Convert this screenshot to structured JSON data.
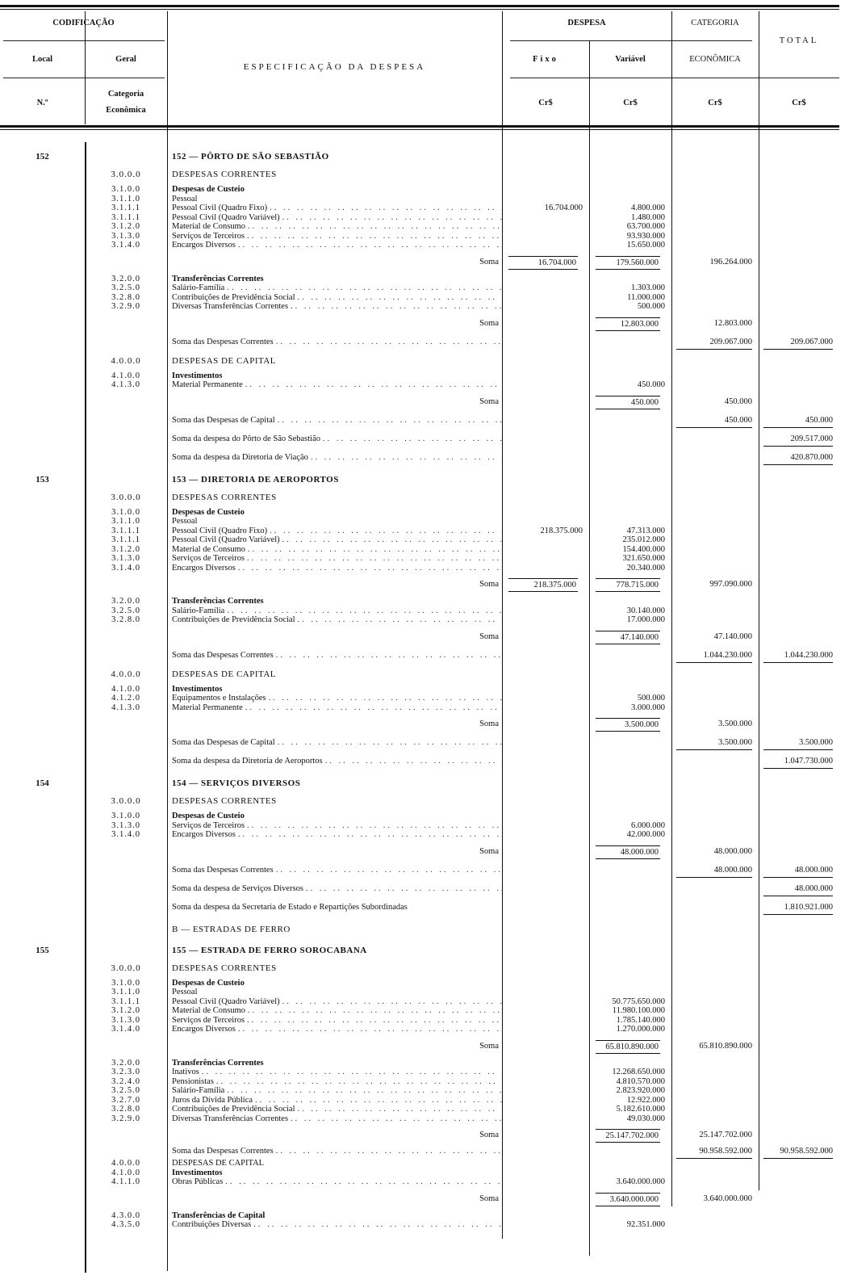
{
  "header": {
    "codificacao": "CODIFICAÇÃO",
    "local": "Local",
    "geral": "Geral",
    "numero": "N.º",
    "categoria_economica_code": "Categoria Econômica",
    "especificacao": "ESPECIFICAÇÃO DA DESPESA",
    "despesa": "DESPESA",
    "fixo": "Fixo",
    "variavel": "Variável",
    "categoria": "CATEGORIA",
    "economica": "ECONÔMICA",
    "total": "TOTAL",
    "currency": "Cr$"
  },
  "rows": [
    {
      "kind": "heading",
      "local": "152",
      "desc": "152 — PÔRTO DE SÃO SEBASTIÃO"
    },
    {
      "kind": "section",
      "code": "3.0.0.0",
      "desc": "DESPESAS CORRENTES"
    },
    {
      "kind": "group",
      "code": "3.1.0.0",
      "desc": "Despesas de Custeio",
      "bold": true
    },
    {
      "kind": "item",
      "code": "3.1.1.0",
      "desc": "Pessoal"
    },
    {
      "kind": "item",
      "code": "3.1.1.1",
      "desc": "Pessoal Civil (Quadro Fixo)",
      "leader": true,
      "fixo": "16.704.000",
      "var": "4.800.000"
    },
    {
      "kind": "item",
      "code": "3.1.1.1",
      "desc": "Pessoal Civil (Quadro Variável)",
      "leader": true,
      "var": "1.480.000"
    },
    {
      "kind": "item",
      "code": "3.1.2.0",
      "desc": "Material de Consumo",
      "leader": true,
      "var": "63.700.000"
    },
    {
      "kind": "item",
      "code": "3.1.3.0",
      "desc": "Serviços de Terceiros",
      "leader": true,
      "var": "93.930.000"
    },
    {
      "kind": "item",
      "code": "3.1.4.0",
      "desc": "Encargos Diversos",
      "leader": true,
      "var": "15.650.000"
    },
    {
      "kind": "soma",
      "desc": "Soma",
      "fixo": "16.704.000",
      "var": "179.560.000",
      "cat": "196.264.000"
    },
    {
      "kind": "group",
      "code": "3.2.0.0",
      "desc": "Transferências Correntes",
      "bold": true
    },
    {
      "kind": "item",
      "code": "3.2.5.0",
      "desc": "Salário-Família",
      "leader": true,
      "var": "1.303.000"
    },
    {
      "kind": "item",
      "code": "3.2.8.0",
      "desc": "Contribuições de Previdência Social",
      "leader": true,
      "var": "11.000.000"
    },
    {
      "kind": "item",
      "code": "3.2.9.0",
      "desc": "Diversas Transferências Correntes",
      "leader": true,
      "var": "500.000"
    },
    {
      "kind": "soma",
      "desc": "Soma",
      "var": "12.803.000",
      "cat": "12.803.000"
    },
    {
      "kind": "summary",
      "desc": "Soma das Despesas Correntes",
      "leader": true,
      "cat": "209.067.000",
      "total": "209.067.000"
    },
    {
      "kind": "section",
      "code": "4.0.0.0",
      "desc": "DESPESAS DE CAPITAL"
    },
    {
      "kind": "group",
      "code": "4.1.0.0",
      "desc": "Investimentos",
      "bold": true
    },
    {
      "kind": "item",
      "code": "4.1.3.0",
      "desc": "Material Permanente",
      "leader": true,
      "var": "450.000"
    },
    {
      "kind": "soma",
      "desc": "Soma",
      "var": "450.000",
      "cat": "450.000"
    },
    {
      "kind": "summary",
      "desc": "Soma das Despesas de Capital",
      "leader": true,
      "cat": "450.000",
      "total": "450.000"
    },
    {
      "kind": "summary",
      "desc": "Soma da despesa do Pôrto de São Sebastião",
      "leader": true,
      "total": "209.517.000"
    },
    {
      "kind": "summary",
      "desc": "Soma da despesa da Diretoria de Viação",
      "leader": true,
      "total": "420.870.000"
    },
    {
      "kind": "heading",
      "local": "153",
      "desc": "153 — DIRETORIA DE AEROPORTOS"
    },
    {
      "kind": "section",
      "code": "3.0.0.0",
      "desc": "DESPESAS CORRENTES"
    },
    {
      "kind": "group",
      "code": "3.1.0.0",
      "desc": "Despesas de Custeio",
      "bold": true
    },
    {
      "kind": "item",
      "code": "3.1.1.0",
      "desc": "Pessoal"
    },
    {
      "kind": "item",
      "code": "3.1.1.1",
      "desc": "Pessoal Civil (Quadro Fixo)",
      "leader": true,
      "fixo": "218.375.000",
      "var": "47.313.000"
    },
    {
      "kind": "item",
      "code": "3.1.1.1",
      "desc": "Pessoal Civil (Quadro Variável)",
      "leader": true,
      "var": "235.012.000"
    },
    {
      "kind": "item",
      "code": "3.1.2.0",
      "desc": "Material de Consumo",
      "leader": true,
      "var": "154.400.000"
    },
    {
      "kind": "item",
      "code": "3.1.3.0",
      "desc": "Serviços de Terceiros",
      "leader": true,
      "var": "321.650.000"
    },
    {
      "kind": "item",
      "code": "3.1.4.0",
      "desc": "Encargos Diversos",
      "leader": true,
      "var": "20.340.000"
    },
    {
      "kind": "soma",
      "desc": "Soma",
      "fixo": "218.375.000",
      "var": "778.715.000",
      "cat": "997.090.000"
    },
    {
      "kind": "group",
      "code": "3.2.0.0",
      "desc": "Transferências Correntes",
      "bold": true
    },
    {
      "kind": "item",
      "code": "3.2.5.0",
      "desc": "Salário-Família",
      "leader": true,
      "var": "30.140.000"
    },
    {
      "kind": "item",
      "code": "3.2.8.0",
      "desc": "Contribuições de Previdência Social",
      "leader": true,
      "var": "17.000.000"
    },
    {
      "kind": "soma",
      "desc": "Soma",
      "var": "47.140.000",
      "cat": "47.140.000"
    },
    {
      "kind": "summary",
      "desc": "Soma das Despesas Correntes",
      "leader": true,
      "cat": "1.044.230.000",
      "total": "1.044.230.000"
    },
    {
      "kind": "section",
      "code": "4.0.0.0",
      "desc": "DESPESAS DE CAPITAL"
    },
    {
      "kind": "group",
      "code": "4.1.0.0",
      "desc": "Investimentos",
      "bold": true
    },
    {
      "kind": "item",
      "code": "4.1.2.0",
      "desc": "Equipamentos e Instalações",
      "leader": true,
      "var": "500.000"
    },
    {
      "kind": "item",
      "code": "4.1.3.0",
      "desc": "Material Permanente",
      "leader": true,
      "var": "3.000.000"
    },
    {
      "kind": "soma",
      "desc": "Soma",
      "var": "3.500.000",
      "cat": "3.500.000"
    },
    {
      "kind": "summary",
      "desc": "Soma das Despesas de Capital",
      "leader": true,
      "cat": "3.500.000",
      "total": "3.500.000"
    },
    {
      "kind": "summary",
      "desc": "Soma da despesa da Diretoria de Aeroportos",
      "leader": true,
      "total": "1.047.730.000"
    },
    {
      "kind": "heading",
      "local": "154",
      "desc": "154 — SERVIÇOS DIVERSOS"
    },
    {
      "kind": "section",
      "code": "3.0.0.0",
      "desc": "DESPESAS CORRENTES"
    },
    {
      "kind": "group",
      "code": "3.1.0.0",
      "desc": "Despesas de Custeio",
      "bold": true
    },
    {
      "kind": "item",
      "code": "3.1.3.0",
      "desc": "Serviços de Terceiros",
      "leader": true,
      "var": "6.000.000"
    },
    {
      "kind": "item",
      "code": "3.1.4.0",
      "desc": "Encargos Diversos",
      "leader": true,
      "var": "42.000.000"
    },
    {
      "kind": "soma",
      "desc": "Soma",
      "var": "48.000.000",
      "cat": "48.000.000"
    },
    {
      "kind": "summary",
      "desc": "Soma das Despesas Correntes",
      "leader": true,
      "cat": "48.000.000",
      "total": "48.000.000"
    },
    {
      "kind": "summary",
      "desc": "Soma da despesa de Serviços Diversos",
      "leader": true,
      "total": "48.000.000"
    },
    {
      "kind": "summary",
      "desc": "Soma da despesa da Secretaria de Estado e Repartições Subordinadas",
      "total": "1.810.921.000"
    },
    {
      "kind": "heading",
      "plain": true,
      "desc": "B — ESTRADAS DE FERRO"
    },
    {
      "kind": "heading",
      "local": "155",
      "desc": "155 — ESTRADA DE FERRO SOROCABANA"
    },
    {
      "kind": "section",
      "code": "3.0.0.0",
      "desc": "DESPESAS CORRENTES"
    },
    {
      "kind": "group",
      "code": "3.1.0.0",
      "desc": "Despesas de Custeio",
      "bold": true
    },
    {
      "kind": "item",
      "code": "3.1.1.0",
      "desc": "Pessoal"
    },
    {
      "kind": "item",
      "code": "3.1.1.1",
      "desc": "Pessoal Civil (Quadro Variável)",
      "leader": true,
      "var": "50.775.650.000"
    },
    {
      "kind": "item",
      "code": "3.1.2.0",
      "desc": "Material de Consumo",
      "leader": true,
      "var": "11.980.100.000"
    },
    {
      "kind": "item",
      "code": "3.1.3.0",
      "desc": "Serviços de Terceiros",
      "leader": true,
      "var": "1.785.140.000"
    },
    {
      "kind": "item",
      "code": "3.1.4.0",
      "desc": "Encargos Diversos",
      "leader": true,
      "var": "1.270.000.000"
    },
    {
      "kind": "soma",
      "desc": "Soma",
      "var": "65.810.890.000",
      "cat": "65.810.890.000"
    },
    {
      "kind": "group",
      "code": "3.2.0.0",
      "desc": "Transferências Correntes",
      "bold": true
    },
    {
      "kind": "item",
      "code": "3.2.3.0",
      "desc": "Inativos",
      "leader": true,
      "var": "12.268.650.000"
    },
    {
      "kind": "item",
      "code": "3.2.4.0",
      "desc": "Pensionistas",
      "leader": true,
      "var": "4.810.570.000"
    },
    {
      "kind": "item",
      "code": "3.2.5.0",
      "desc": "Salário-Família",
      "leader": true,
      "var": "2.823.920.000"
    },
    {
      "kind": "item",
      "code": "3.2.7.0",
      "desc": "Juros da Dívida Pública",
      "leader": true,
      "var": "12.922.000"
    },
    {
      "kind": "item",
      "code": "3.2.8.0",
      "desc": "Contribuições de Previdência Social",
      "leader": true,
      "var": "5.182.610.000"
    },
    {
      "kind": "item",
      "code": "3.2.9.0",
      "desc": "Diversas Transferências Correntes",
      "leader": true,
      "var": "49.030.000"
    },
    {
      "kind": "soma",
      "desc": "Soma",
      "var": "25.147.702.000",
      "cat": "25.147.702.000"
    },
    {
      "kind": "summary",
      "tight": true,
      "desc": "Soma das Despesas Correntes",
      "leader": true,
      "cat": "90.958.592.000",
      "total": "90.958.592.000"
    },
    {
      "kind": "item",
      "code": "4.0.0.0",
      "desc": "DESPESAS DE CAPITAL"
    },
    {
      "kind": "item",
      "code": "4.1.0.0",
      "desc": "Investimentos",
      "bold": true
    },
    {
      "kind": "item",
      "code": "4.1.1.0",
      "desc": "Obras Públicas",
      "leader": true,
      "var": "3.640.000.000"
    },
    {
      "kind": "soma",
      "desc": "Soma",
      "var": "3.640.000.000",
      "cat": "3.640.000.000"
    },
    {
      "kind": "group",
      "code": "4.3.0.0",
      "desc": "Transferências de Capital",
      "bold": true
    },
    {
      "kind": "item",
      "code": "4.3.5.0",
      "desc": "Contribuições Diversas",
      "leader": true,
      "var": "92.351.000"
    }
  ]
}
